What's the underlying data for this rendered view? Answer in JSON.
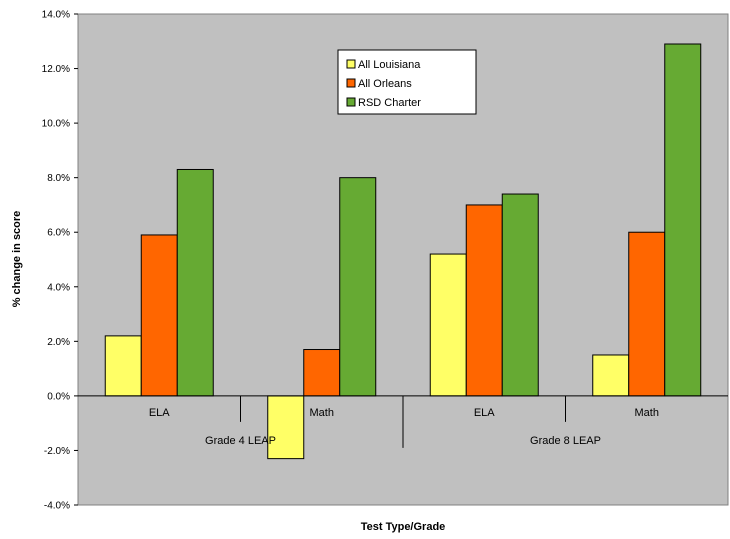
{
  "chart_data": {
    "type": "bar",
    "xlabel": "Test Type/Grade",
    "ylabel": "% change in score",
    "ylim": [
      -0.04,
      0.14
    ],
    "yticks": [
      -0.04,
      -0.02,
      0.0,
      0.02,
      0.04,
      0.06,
      0.08,
      0.1,
      0.12,
      0.14
    ],
    "ytick_labels": [
      "-4.0%",
      "-2.0%",
      "0.0%",
      "2.0%",
      "4.0%",
      "6.0%",
      "8.0%",
      "10.0%",
      "12.0%",
      "14.0%"
    ],
    "categories": [
      "ELA",
      "Math",
      "ELA",
      "Math"
    ],
    "groups": [
      {
        "label": "Grade 4 LEAP",
        "categories": [
          0,
          1
        ]
      },
      {
        "label": "Grade 8 LEAP",
        "categories": [
          2,
          3
        ]
      }
    ],
    "series": [
      {
        "name": "All Louisiana",
        "color": "#ffff66",
        "values": [
          0.022,
          -0.023,
          0.052,
          0.015
        ]
      },
      {
        "name": "All Orleans",
        "color": "#ff6600",
        "values": [
          0.059,
          0.017,
          0.07,
          0.06
        ]
      },
      {
        "name": "RSD Charter",
        "color": "#66aa33",
        "values": [
          0.083,
          0.08,
          0.074,
          0.129
        ]
      }
    ],
    "plot_background": "#c0c0c0",
    "grid": false,
    "legend_position": "top-center"
  }
}
